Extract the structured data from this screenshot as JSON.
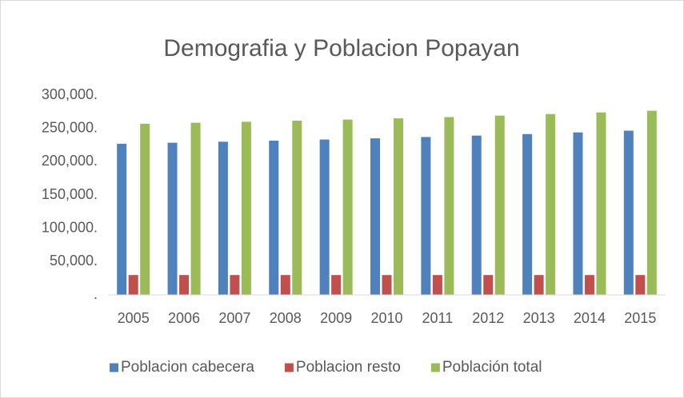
{
  "chart_data": {
    "type": "bar",
    "title": "Demografia y Poblacion Popayan",
    "categories": [
      "2005",
      "2006",
      "2007",
      "2008",
      "2009",
      "2010",
      "2011",
      "2012",
      "2013",
      "2014",
      "2015"
    ],
    "series": [
      {
        "name": "Poblacion cabecera",
        "color": "#4f81bd",
        "values": [
          227000,
          228500,
          230000,
          231600,
          233300,
          235100,
          237100,
          239200,
          241500,
          244000,
          246600
        ]
      },
      {
        "name": "Poblacion resto",
        "color": "#c0504d",
        "values": [
          29800,
          29800,
          29800,
          29800,
          29800,
          29800,
          29800,
          29800,
          29800,
          29800,
          29800
        ]
      },
      {
        "name": "Población total",
        "color": "#9bbb59",
        "values": [
          257000,
          258500,
          260000,
          261600,
          263300,
          265100,
          267000,
          269200,
          271500,
          274000,
          276500
        ]
      }
    ],
    "ylim": [
      0,
      300000
    ],
    "yticks": [
      {
        "value": 0,
        "label": "."
      },
      {
        "value": 50000,
        "label": "50,000."
      },
      {
        "value": 100000,
        "label": "100,000."
      },
      {
        "value": 150000,
        "label": "150,000."
      },
      {
        "value": 200000,
        "label": "200,000."
      },
      {
        "value": 250000,
        "label": "250,000."
      },
      {
        "value": 300000,
        "label": "300,000."
      }
    ],
    "grid": false,
    "legend": "bottom"
  }
}
